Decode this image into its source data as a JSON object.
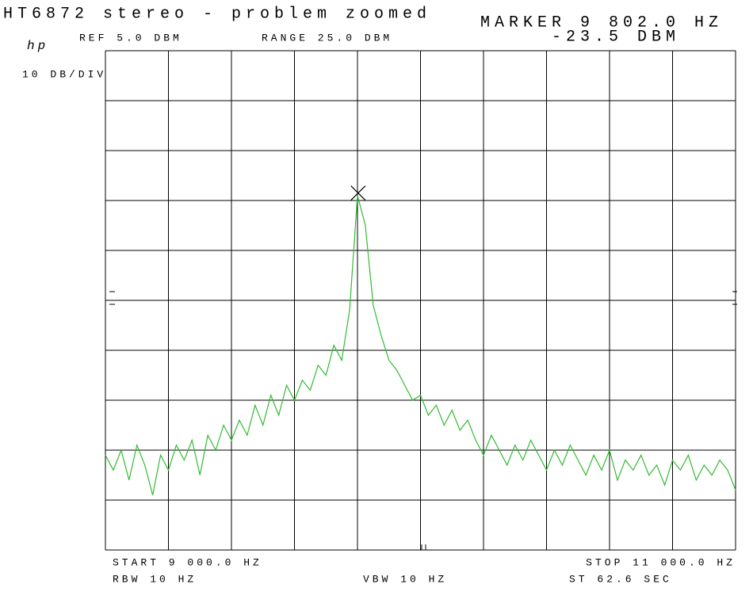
{
  "chart_data": {
    "type": "line",
    "title": "HT6872 stereo - problem zoomed",
    "logo": "hp",
    "ref_level": "REF 5.0 DBM",
    "range": "RANGE 25.0 DBM",
    "scale": "10 DB/DIV",
    "marker": {
      "x": 9802,
      "y": -23.5,
      "x_label": "MARKER 9 802.0 HZ",
      "y_label": "-23.5 DBM"
    },
    "start": "START 9 000.0 HZ",
    "stop": "STOP 11 000.0 HZ",
    "rbw": "RBW 10 HZ",
    "vbw": "VBW 10 HZ",
    "sweep_time": "ST 62.6 SEC",
    "xlim": [
      9000,
      11000
    ],
    "ylim": [
      -95,
      5
    ],
    "xticks": [
      9000,
      9200,
      9400,
      9600,
      9800,
      10000,
      10200,
      10400,
      10600,
      10800,
      11000
    ],
    "yticks": [
      5,
      -5,
      -15,
      -25,
      -35,
      -45,
      -55,
      -65,
      -75,
      -85,
      -95
    ],
    "grid": true,
    "x": [
      9000,
      9025,
      9050,
      9075,
      9100,
      9125,
      9150,
      9175,
      9200,
      9225,
      9250,
      9275,
      9300,
      9325,
      9350,
      9375,
      9400,
      9425,
      9450,
      9475,
      9500,
      9525,
      9550,
      9575,
      9600,
      9625,
      9650,
      9675,
      9700,
      9725,
      9750,
      9775,
      9800,
      9825,
      9850,
      9875,
      9900,
      9925,
      9950,
      9975,
      10000,
      10025,
      10050,
      10075,
      10100,
      10125,
      10150,
      10175,
      10200,
      10225,
      10250,
      10275,
      10300,
      10325,
      10350,
      10375,
      10400,
      10425,
      10450,
      10475,
      10500,
      10525,
      10550,
      10575,
      10600,
      10625,
      10650,
      10675,
      10700,
      10725,
      10750,
      10775,
      10800,
      10825,
      10850,
      10875,
      10900,
      10925,
      10950,
      10975,
      11000
    ],
    "series": [
      {
        "color": "#33bb33",
        "values": [
          -76,
          -79,
          -75,
          -81,
          -74,
          -78,
          -84,
          -76,
          -79,
          -74,
          -77,
          -73,
          -80,
          -72,
          -75,
          -70,
          -73,
          -69,
          -72,
          -66,
          -70,
          -64,
          -68,
          -62,
          -65,
          -61,
          -63,
          -58,
          -60,
          -54,
          -57,
          -47,
          -24,
          -30,
          -46,
          -52,
          -57,
          -59,
          -62,
          -65,
          -64,
          -68,
          -66,
          -70,
          -67,
          -71,
          -69,
          -73,
          -76,
          -72,
          -75,
          -78,
          -74,
          -77,
          -73,
          -76,
          -79,
          -75,
          -78,
          -74,
          -77,
          -80,
          -76,
          -79,
          -75,
          -81,
          -77,
          -79,
          -76,
          -80,
          -78,
          -82,
          -77,
          -79,
          -76,
          -81,
          -78,
          -80,
          -77,
          -79,
          -83
        ]
      }
    ]
  }
}
